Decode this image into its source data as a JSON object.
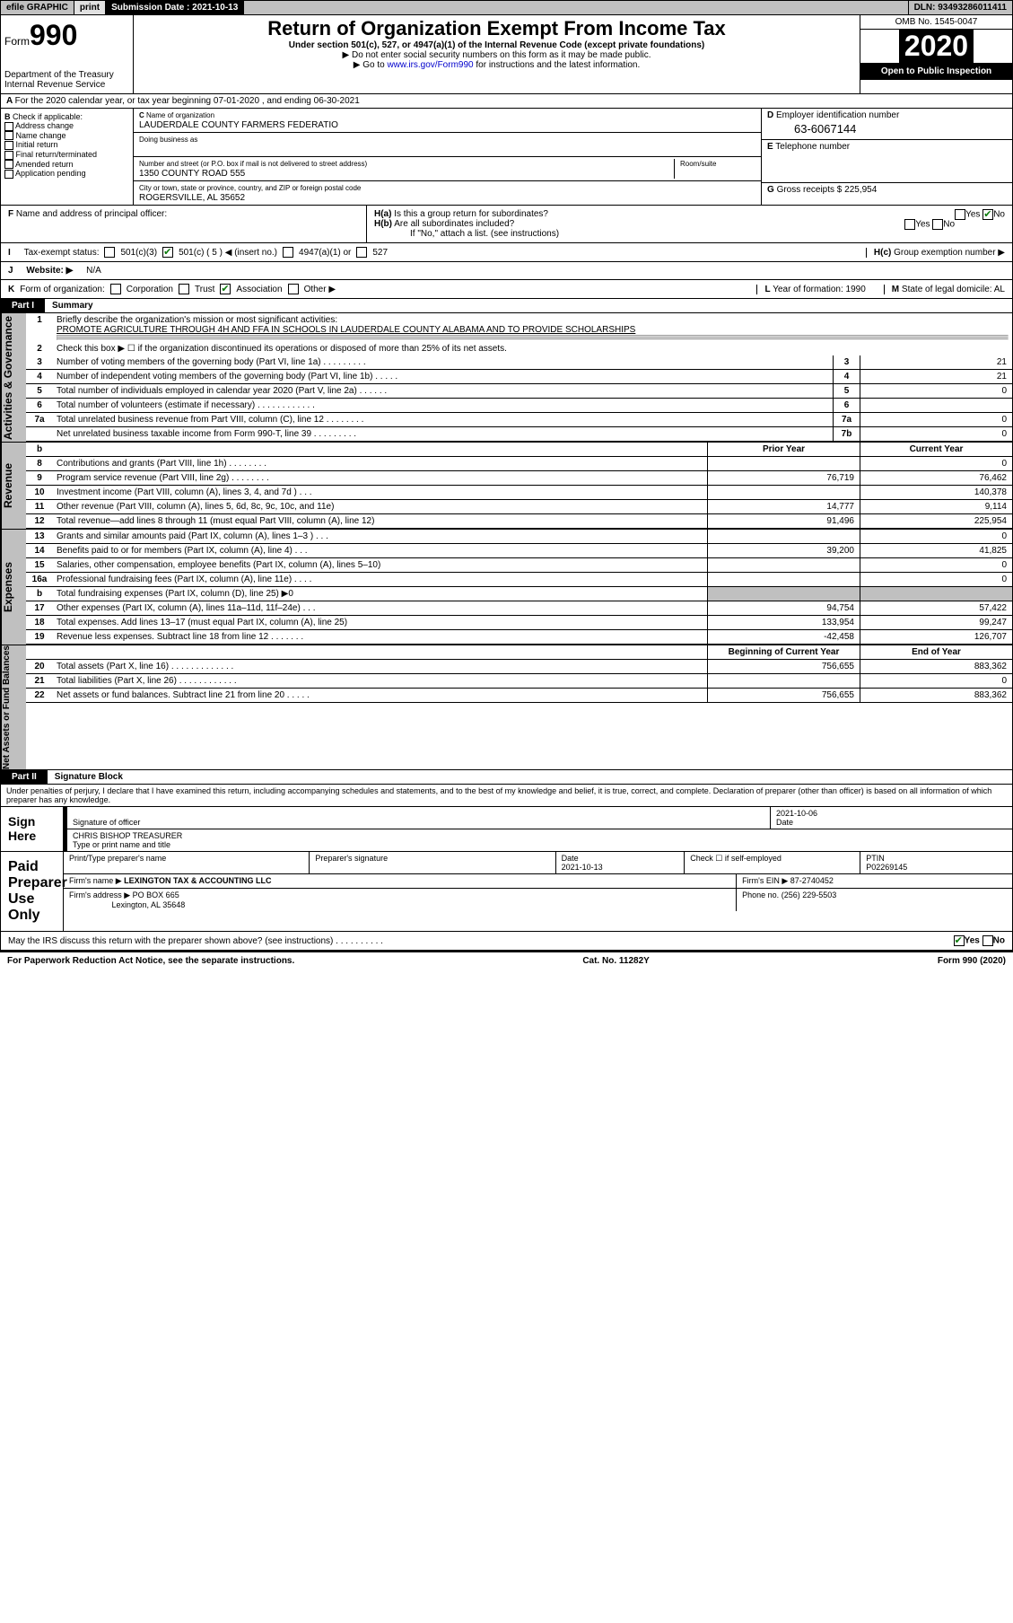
{
  "topbar": {
    "efile": "efile GRAPHIC",
    "print": "print",
    "subdate_label": "Submission Date :",
    "subdate": "2021-10-13",
    "dln_label": "DLN:",
    "dln": "93493286011411"
  },
  "header": {
    "form_word": "Form",
    "form_num": "990",
    "dept": "Department of the Treasury\nInternal Revenue Service",
    "title": "Return of Organization Exempt From Income Tax",
    "sub1": "Under section 501(c), 527, or 4947(a)(1) of the Internal Revenue Code (except private foundations)",
    "sub2": "▶ Do not enter social security numbers on this form as it may be made public.",
    "sub3_pre": "▶ Go to ",
    "sub3_link": "www.irs.gov/Form990",
    "sub3_post": " for instructions and the latest information.",
    "omb": "OMB No. 1545-0047",
    "year": "2020",
    "open": "Open to Public Inspection"
  },
  "A": {
    "text": "For the 2020 calendar year, or tax year beginning 07-01-2020    , and ending 06-30-2021"
  },
  "B": {
    "label": "Check if applicable:",
    "opts": [
      "Address change",
      "Name change",
      "Initial return",
      "Final return/terminated",
      "Amended return",
      "Application pending"
    ]
  },
  "C": {
    "name_label": "Name of organization",
    "name": "LAUDERDALE COUNTY FARMERS FEDERATIO",
    "dba_label": "Doing business as",
    "street_label": "Number and street (or P.O. box if mail is not delivered to street address)",
    "room_label": "Room/suite",
    "street": "1350 COUNTY ROAD 555",
    "city_label": "City or town, state or province, country, and ZIP or foreign postal code",
    "city": "ROGERSVILLE, AL  35652"
  },
  "D": {
    "label": "Employer identification number",
    "value": "63-6067144"
  },
  "E": {
    "label": "Telephone number",
    "value": ""
  },
  "G": {
    "label": "Gross receipts $",
    "value": "225,954"
  },
  "F": {
    "label": "Name and address of principal officer:"
  },
  "H": {
    "a": "Is this a group return for subordinates?",
    "b": "Are all subordinates included?",
    "b_note": "If \"No,\" attach a list. (see instructions)",
    "c": "Group exemption number ▶",
    "yes": "Yes",
    "no": "No"
  },
  "I": {
    "label": "Tax-exempt status:",
    "opt1": "501(c)(3)",
    "opt2": "501(c) ( 5 ) ◀ (insert no.)",
    "opt3": "4947(a)(1) or",
    "opt4": "527"
  },
  "J": {
    "label": "Website: ▶",
    "value": "N/A"
  },
  "K": {
    "label": "Form of organization:",
    "opts": [
      "Corporation",
      "Trust",
      "Association",
      "Other ▶"
    ],
    "L": "Year of formation: 1990",
    "M": "State of legal domicile: AL"
  },
  "partI": {
    "hdr": "Part I",
    "title": "Summary"
  },
  "gov": {
    "q1_label": "Briefly describe the organization's mission or most significant activities:",
    "q1_val": "PROMOTE AGRICULTURE THROUGH 4H AND FFA IN SCHOOLS IN LAUDERDALE COUNTY ALABAMA AND TO PROVIDE SCHOLARSHIPS",
    "q2": "Check this box ▶ ☐  if the organization discontinued its operations or disposed of more than 25% of its net assets.",
    "lines": [
      {
        "n": "3",
        "t": "Number of voting members of the governing body (Part VI, line 1a)  .  .  .  .  .  .  .  .  .",
        "b": "3",
        "v": "21"
      },
      {
        "n": "4",
        "t": "Number of independent voting members of the governing body (Part VI, line 1b)  .  .  .  .  .",
        "b": "4",
        "v": "21"
      },
      {
        "n": "5",
        "t": "Total number of individuals employed in calendar year 2020 (Part V, line 2a)  .  .  .  .  .  .",
        "b": "5",
        "v": "0"
      },
      {
        "n": "6",
        "t": "Total number of volunteers (estimate if necessary)  .  .  .  .  .  .  .  .  .  .  .  .",
        "b": "6",
        "v": ""
      },
      {
        "n": "7a",
        "t": "Total unrelated business revenue from Part VIII, column (C), line 12  .  .  .  .  .  .  .  .",
        "b": "7a",
        "v": "0"
      },
      {
        "n": "",
        "t": "Net unrelated business taxable income from Form 990-T, line 39  .  .  .  .  .  .  .  .  .",
        "b": "7b",
        "v": "0"
      }
    ]
  },
  "cols": {
    "prior": "Prior Year",
    "current": "Current Year",
    "begin": "Beginning of Current Year",
    "end": "End of Year"
  },
  "rev": [
    {
      "n": "8",
      "t": "Contributions and grants (Part VIII, line 1h)  .  .  .  .  .  .  .  .",
      "p": "",
      "c": "0"
    },
    {
      "n": "9",
      "t": "Program service revenue (Part VIII, line 2g)  .  .  .  .  .  .  .  .",
      "p": "76,719",
      "c": "76,462"
    },
    {
      "n": "10",
      "t": "Investment income (Part VIII, column (A), lines 3, 4, and 7d )  .  .  .",
      "p": "",
      "c": "140,378"
    },
    {
      "n": "11",
      "t": "Other revenue (Part VIII, column (A), lines 5, 6d, 8c, 9c, 10c, and 11e)",
      "p": "14,777",
      "c": "9,114"
    },
    {
      "n": "12",
      "t": "Total revenue—add lines 8 through 11 (must equal Part VIII, column (A), line 12)",
      "p": "91,496",
      "c": "225,954"
    }
  ],
  "exp": [
    {
      "n": "13",
      "t": "Grants and similar amounts paid (Part IX, column (A), lines 1–3 )  .  .  .",
      "p": "",
      "c": "0"
    },
    {
      "n": "14",
      "t": "Benefits paid to or for members (Part IX, column (A), line 4)  .  .  .",
      "p": "39,200",
      "c": "41,825"
    },
    {
      "n": "15",
      "t": "Salaries, other compensation, employee benefits (Part IX, column (A), lines 5–10)",
      "p": "",
      "c": "0"
    },
    {
      "n": "16a",
      "t": "Professional fundraising fees (Part IX, column (A), line 11e)  .  .  .  .",
      "p": "",
      "c": "0"
    },
    {
      "n": "b",
      "t": "Total fundraising expenses (Part IX, column (D), line 25) ▶0",
      "p": "grey",
      "c": "grey"
    },
    {
      "n": "17",
      "t": "Other expenses (Part IX, column (A), lines 11a–11d, 11f–24e)  .  .  .",
      "p": "94,754",
      "c": "57,422"
    },
    {
      "n": "18",
      "t": "Total expenses. Add lines 13–17 (must equal Part IX, column (A), line 25)",
      "p": "133,954",
      "c": "99,247"
    },
    {
      "n": "19",
      "t": "Revenue less expenses. Subtract line 18 from line 12  .  .  .  .  .  .  .",
      "p": "-42,458",
      "c": "126,707"
    }
  ],
  "net": [
    {
      "n": "20",
      "t": "Total assets (Part X, line 16)  .  .  .  .  .  .  .  .  .  .  .  .  .",
      "p": "756,655",
      "c": "883,362"
    },
    {
      "n": "21",
      "t": "Total liabilities (Part X, line 26)  .  .  .  .  .  .  .  .  .  .  .  .",
      "p": "",
      "c": "0"
    },
    {
      "n": "22",
      "t": "Net assets or fund balances. Subtract line 21 from line 20  .  .  .  .  .",
      "p": "756,655",
      "c": "883,362"
    }
  ],
  "partII": {
    "hdr": "Part II",
    "title": "Signature Block"
  },
  "sig": {
    "penalty": "Under penalties of perjury, I declare that I have examined this return, including accompanying schedules and statements, and to the best of my knowledge and belief, it is true, correct, and complete. Declaration of preparer (other than officer) is based on all information of which preparer has any knowledge.",
    "sign_here": "Sign Here",
    "sig_officer": "Signature of officer",
    "date": "Date",
    "sig_date": "2021-10-06",
    "name_title": "CHRIS BISHOP  TREASURER",
    "name_label": "Type or print name and title",
    "paid": "Paid Preparer Use Only",
    "prep_name": "Print/Type preparer's name",
    "prep_sig": "Preparer's signature",
    "prep_date_lbl": "Date",
    "prep_date": "2021-10-13",
    "self_emp": "Check ☐ if self-employed",
    "ptin_lbl": "PTIN",
    "ptin": "P02269145",
    "firm_name_lbl": "Firm's name   ▶",
    "firm_name": "LEXINGTON TAX & ACCOUNTING LLC",
    "firm_ein_lbl": "Firm's EIN ▶",
    "firm_ein": "87-2740452",
    "firm_addr_lbl": "Firm's address ▶",
    "firm_addr1": "PO BOX 665",
    "firm_addr2": "Lexington, AL  35648",
    "phone_lbl": "Phone no.",
    "phone": "(256) 229-5503",
    "discuss": "May the IRS discuss this return with the preparer shown above? (see instructions)  .  .  .  .  .  .  .  .  .  ."
  },
  "footer": {
    "left": "For Paperwork Reduction Act Notice, see the separate instructions.",
    "mid": "Cat. No. 11282Y",
    "right": "Form 990 (2020)"
  },
  "sidelabels": {
    "gov": "Activities & Governance",
    "rev": "Revenue",
    "exp": "Expenses",
    "net": "Net Assets or Fund Balances"
  }
}
